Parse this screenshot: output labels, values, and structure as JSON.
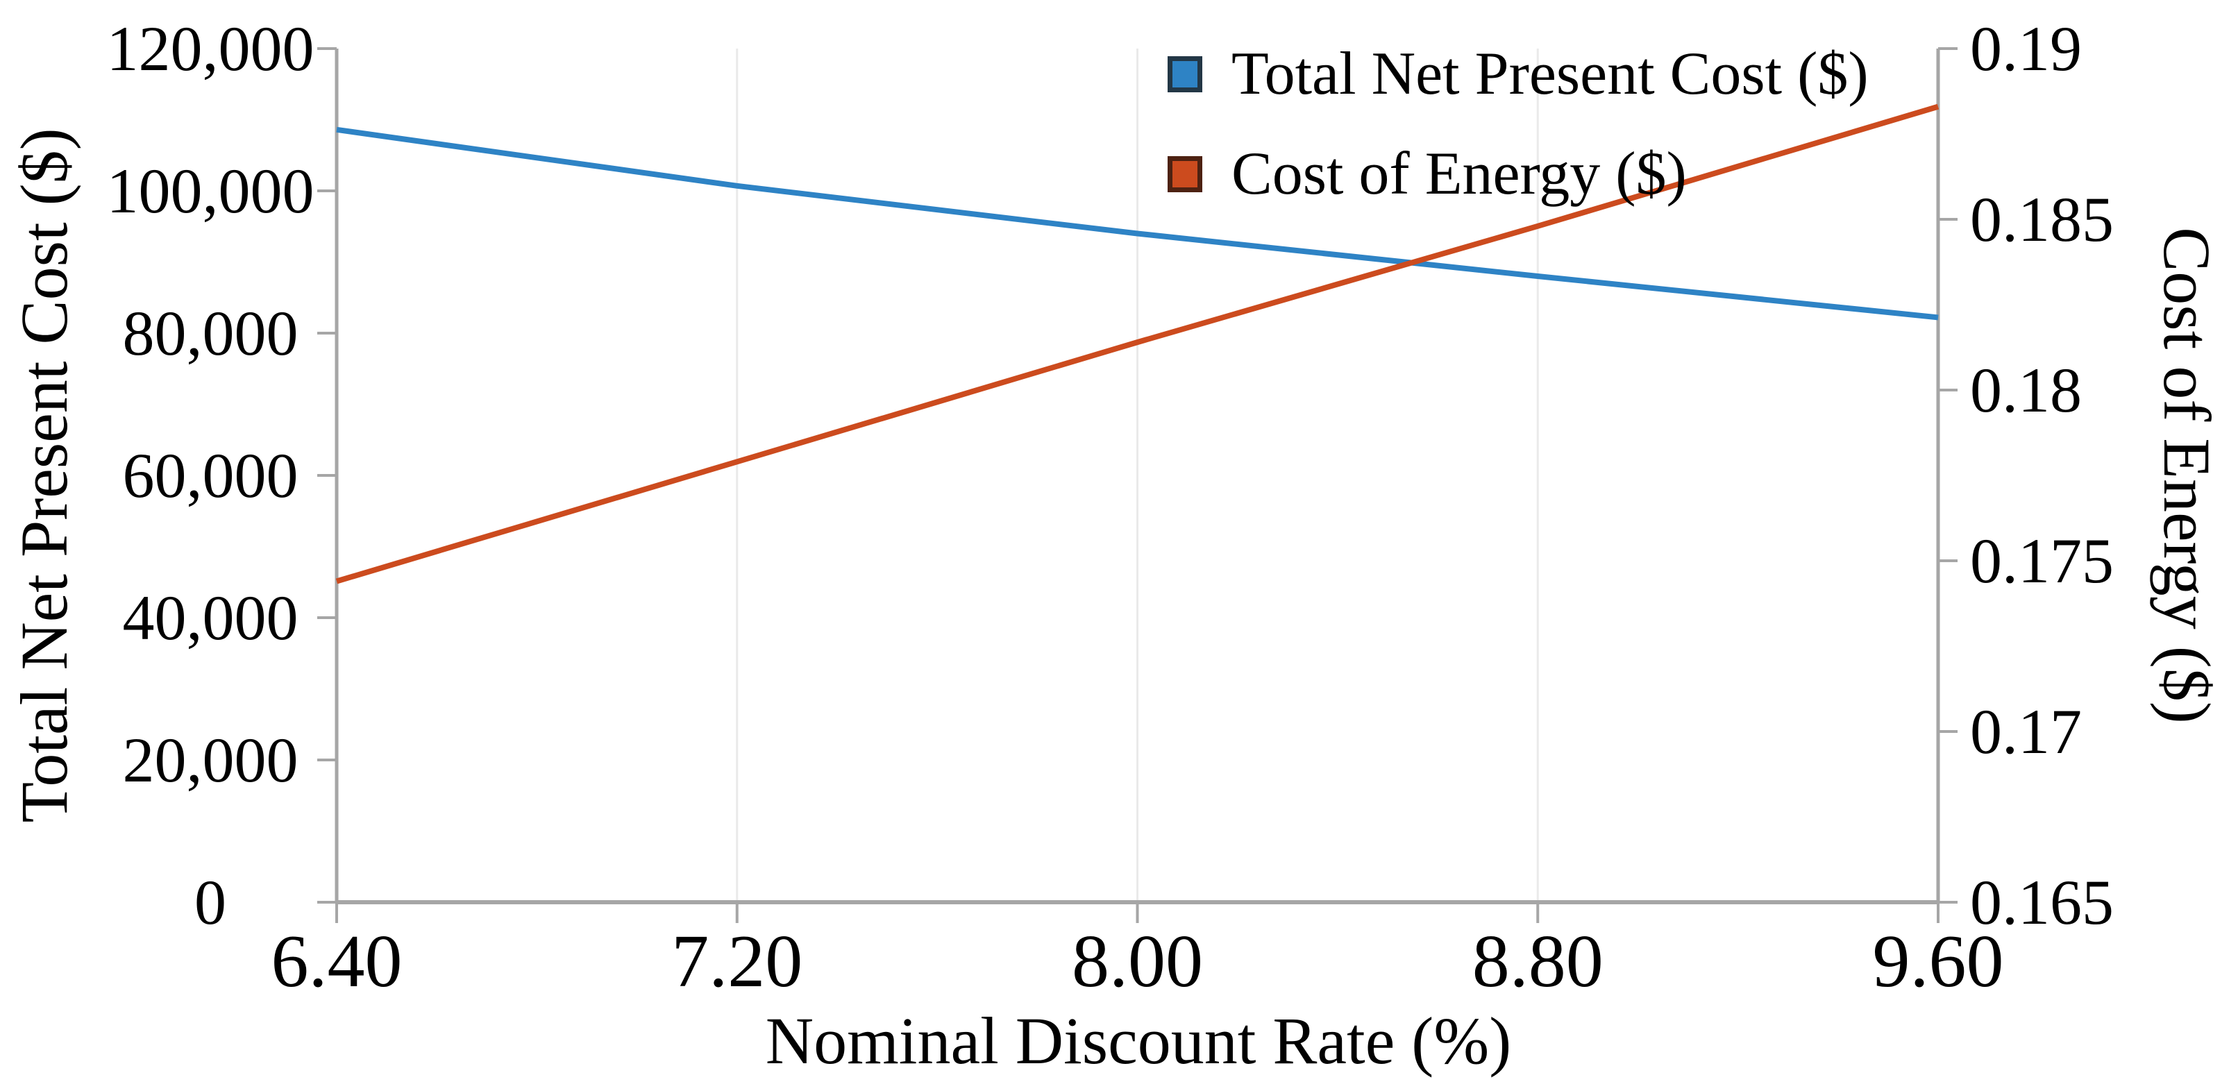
{
  "chart_data": {
    "type": "line",
    "xlabel": "Nominal Discount Rate (%)",
    "x": [
      6.4,
      7.2,
      8.0,
      8.8,
      9.6
    ],
    "x_tick_labels": [
      "6.40",
      "7.20",
      "8.00",
      "8.80",
      "9.60"
    ],
    "left_axis": {
      "label": "Total Net Present Cost ($)",
      "min": 0,
      "max": 120000,
      "tick_step": 20000,
      "tick_labels": [
        "0",
        "20,000",
        "40,000",
        "60,000",
        "80,000",
        "100,000",
        "120,000"
      ]
    },
    "right_axis": {
      "label": "Cost of Energy ($)",
      "min": 0.165,
      "max": 0.19,
      "tick_step": 0.005,
      "tick_labels": [
        "0.165",
        "0.17",
        "0.175",
        "0.18",
        "0.185",
        "0.19"
      ]
    },
    "series": [
      {
        "name": "Total Net Present Cost ($)",
        "axis": "left",
        "color": "#2E83C5",
        "swatch_border": "#233746",
        "values": [
          108600,
          100700,
          94000,
          88000,
          82200
        ]
      },
      {
        "name": "Cost of Energy ($)",
        "axis": "right",
        "color": "#CC4B1E",
        "swatch_border": "#4D2212",
        "values": [
          0.1744,
          0.1779,
          0.1814,
          0.1848,
          0.1883
        ]
      }
    ],
    "grid": {
      "vertical": true,
      "horizontal": false,
      "color": "#EAEAEA"
    },
    "axis_color": "#A6A6A6",
    "legend_position": "top-right-inside"
  }
}
